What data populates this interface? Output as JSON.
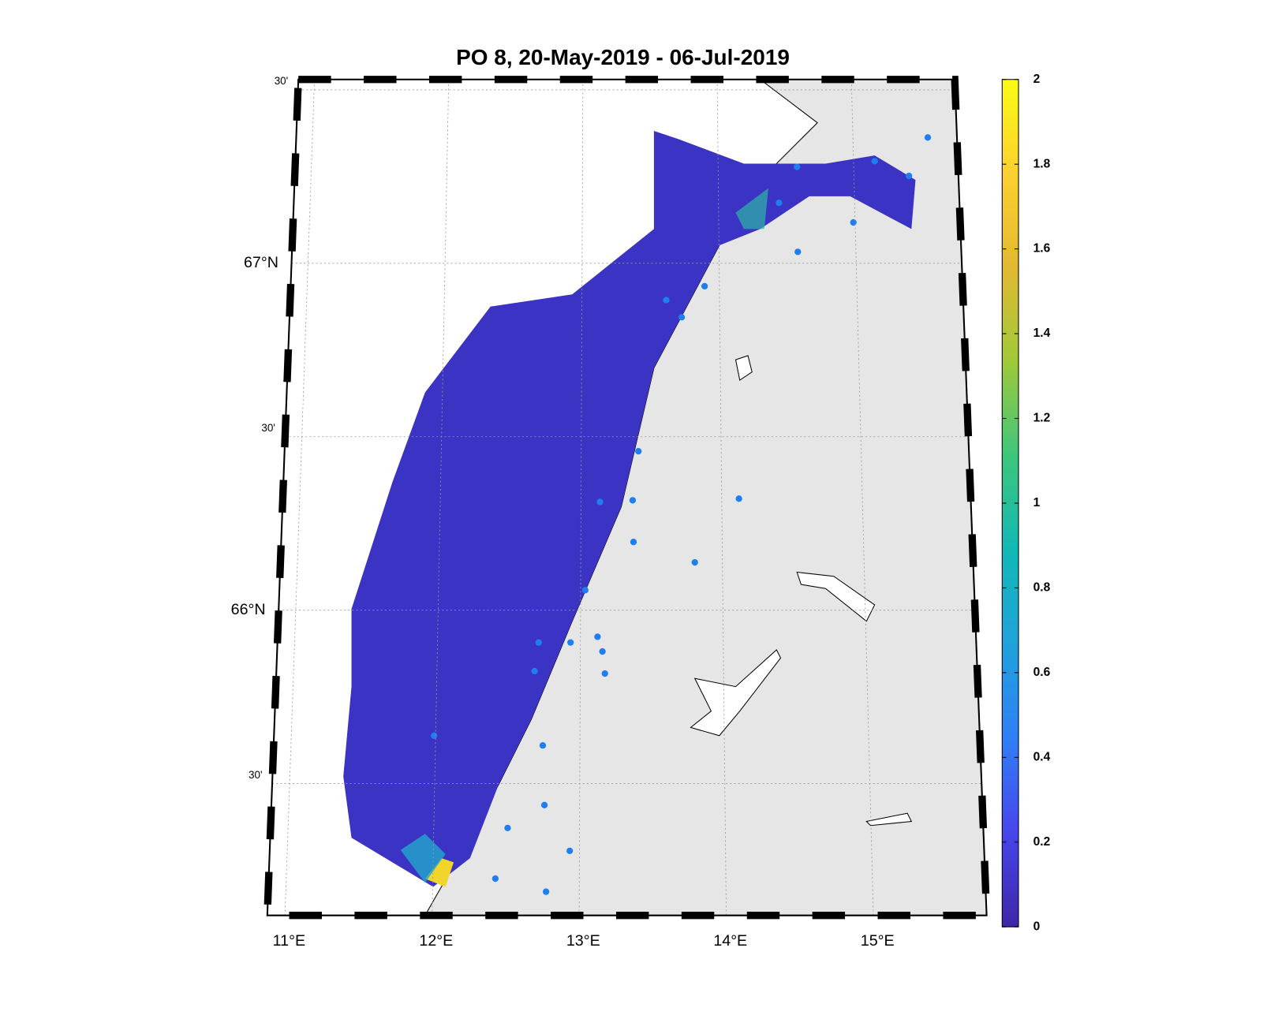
{
  "map": {
    "title": "PO 8, 20-May-2019  - 06-Jul-2019",
    "latlim": [
      65.12,
      67.53
    ],
    "lonlim": [
      10.88,
      15.77
    ],
    "lat_ticks": [
      {
        "value": 65.5,
        "label": "30'"
      },
      {
        "value": 66,
        "label": "66°N"
      },
      {
        "value": 66.5,
        "label": "30'"
      },
      {
        "value": 67,
        "label": "67°N"
      },
      {
        "value": 67.5,
        "label": "30'"
      }
    ],
    "lon_ticks": [
      {
        "value": 11,
        "label": "11°E"
      },
      {
        "value": 12,
        "label": "12°E"
      },
      {
        "value": 13,
        "label": "13°E"
      },
      {
        "value": 14,
        "label": "14°E"
      },
      {
        "value": 15,
        "label": "15°E"
      }
    ],
    "grid": true,
    "colorbar": {
      "lim": [
        0,
        2
      ],
      "ticks": [
        0,
        0.2,
        0.4,
        0.6,
        0.8,
        1,
        1.2,
        1.4,
        1.6,
        1.8,
        2
      ],
      "colormap": [
        "#3e26a8",
        "#4746eb",
        "#2f7ff6",
        "#1fa2db",
        "#11b8b5",
        "#3dc67c",
        "#9fc93a",
        "#e1b932",
        "#fcd030",
        "#f9fb15"
      ]
    }
  }
}
